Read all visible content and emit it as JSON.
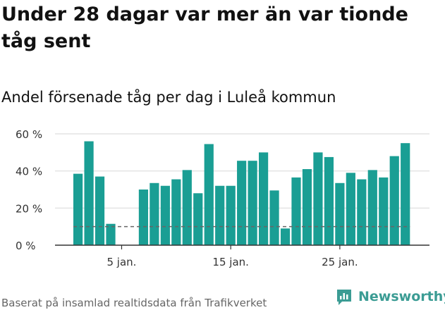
{
  "title": "Under 28 dagar var mer än var tionde tåg sent",
  "subtitle": "Andel försenade tåg per dag i Luleå kommun",
  "footer": "Baserat på insamlad realtidsdata från Trafikverket",
  "brand": "Newsworthy",
  "colors": {
    "bar": "#1a9e94",
    "grid": "#dddddd",
    "axis": "#333333",
    "reference": "#666666",
    "brand": "#3b9c94"
  },
  "chart_data": {
    "type": "bar",
    "title": "Andel försenade tåg per dag i Luleå kommun",
    "xlabel": "",
    "ylabel": "",
    "x": [
      1,
      2,
      3,
      4,
      5,
      6,
      7,
      8,
      9,
      10,
      11,
      12,
      13,
      14,
      15,
      16,
      17,
      18,
      19,
      20,
      21,
      22,
      23,
      24,
      25,
      26,
      27,
      28,
      29,
      30,
      31
    ],
    "values": [
      38.5,
      56,
      37,
      11.5,
      null,
      null,
      30,
      33.5,
      32,
      35.5,
      40.5,
      28,
      54.5,
      32,
      32,
      45.5,
      45.5,
      50,
      29.5,
      9,
      36.5,
      41,
      50,
      47.5,
      33.5,
      39,
      35.5,
      40.5,
      36.5,
      48,
      55
    ],
    "reference_line": 10,
    "ylim": [
      0,
      60
    ],
    "yticks": [
      0,
      20,
      40,
      60
    ],
    "ytick_labels": [
      "0 %",
      "20 %",
      "40 %",
      "60 %"
    ],
    "xticks": [
      5,
      15,
      25
    ],
    "xtick_labels": [
      "5 jan.",
      "15 jan.",
      "25 jan."
    ],
    "grid": true
  }
}
